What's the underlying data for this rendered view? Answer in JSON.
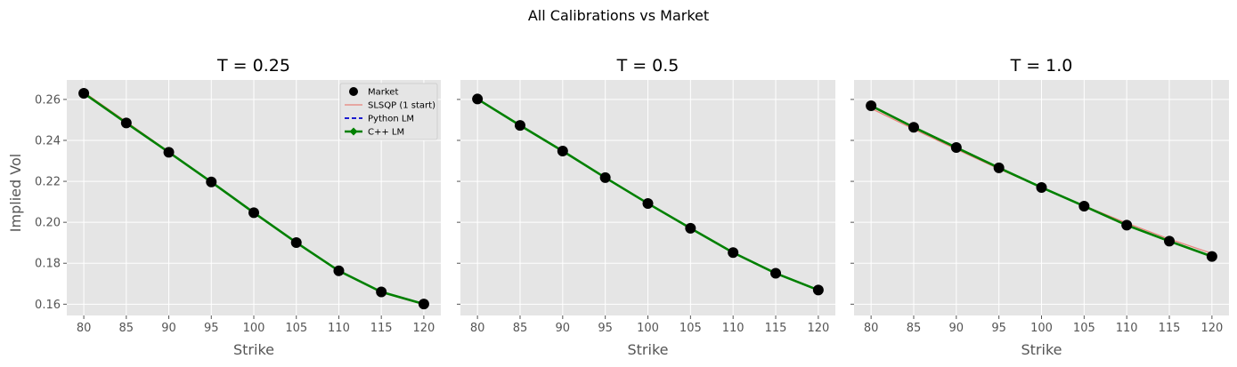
{
  "figure": {
    "suptitle": "All Calibrations vs Market",
    "shared_ylabel": "Implied Vol"
  },
  "chart_data": [
    {
      "type": "line",
      "title": "T = 0.25",
      "xlabel": "Strike",
      "ylabel": "Implied Vol",
      "x": [
        80,
        85,
        90,
        95,
        100,
        105,
        110,
        115,
        120
      ],
      "xticks": [
        80,
        85,
        90,
        95,
        100,
        105,
        110,
        115,
        120
      ],
      "yticks": [
        0.16,
        0.18,
        0.2,
        0.22,
        0.24,
        0.26
      ],
      "ytick_labels": [
        "0.16",
        "0.18",
        "0.20",
        "0.22",
        "0.24",
        "0.26"
      ],
      "xlim": [
        78,
        122
      ],
      "ylim": [
        0.1545,
        0.2695
      ],
      "show_legend": true,
      "legend_position": "upper right",
      "series": [
        {
          "name": "Market",
          "style": "markers",
          "color": "#000000",
          "values": [
            0.263,
            0.2485,
            0.2342,
            0.2197,
            0.2047,
            0.1901,
            0.1763,
            0.166,
            0.1601
          ]
        },
        {
          "name": "SLSQP (1 start)",
          "style": "thin",
          "color": "#e8827a",
          "values": [
            0.2636,
            0.2491,
            0.2345,
            0.2198,
            0.2049,
            0.1902,
            0.1765,
            0.1657,
            0.1598
          ]
        },
        {
          "name": "Python LM",
          "style": "dashed",
          "color": "#0000cc",
          "values": [
            0.263,
            0.2485,
            0.2342,
            0.2197,
            0.2047,
            0.1901,
            0.1763,
            0.166,
            0.1601
          ]
        },
        {
          "name": "C++ LM",
          "style": "thick-diamond",
          "color": "#008000",
          "values": [
            0.263,
            0.2485,
            0.2342,
            0.2197,
            0.2047,
            0.1901,
            0.1763,
            0.166,
            0.1601
          ]
        }
      ]
    },
    {
      "type": "line",
      "title": "T = 0.5",
      "xlabel": "Strike",
      "x": [
        80,
        85,
        90,
        95,
        100,
        105,
        110,
        115,
        120
      ],
      "xticks": [
        80,
        85,
        90,
        95,
        100,
        105,
        110,
        115,
        120
      ],
      "yticks": [
        0.16,
        0.18,
        0.2,
        0.22,
        0.24,
        0.26
      ],
      "ytick_labels": [
        "",
        "",
        "",
        "",
        "",
        ""
      ],
      "xlim": [
        78,
        122
      ],
      "ylim": [
        0.1545,
        0.2695
      ],
      "show_legend": false,
      "series": [
        {
          "name": "Market",
          "style": "markers",
          "color": "#000000",
          "values": [
            0.2602,
            0.2473,
            0.2348,
            0.2218,
            0.2092,
            0.1971,
            0.1852,
            0.1751,
            0.1669
          ]
        },
        {
          "name": "SLSQP (1 start)",
          "style": "thin",
          "color": "#e8827a",
          "values": [
            0.2604,
            0.2474,
            0.2347,
            0.2219,
            0.2093,
            0.1971,
            0.1852,
            0.1752,
            0.1669
          ]
        },
        {
          "name": "Python LM",
          "style": "dashed",
          "color": "#0000cc",
          "values": [
            0.2602,
            0.2473,
            0.2348,
            0.2218,
            0.2092,
            0.1971,
            0.1852,
            0.1751,
            0.1669
          ]
        },
        {
          "name": "C++ LM",
          "style": "thick-diamond",
          "color": "#008000",
          "values": [
            0.2602,
            0.2473,
            0.2348,
            0.2218,
            0.2092,
            0.1971,
            0.1852,
            0.1751,
            0.1669
          ]
        }
      ]
    },
    {
      "type": "line",
      "title": "T = 1.0",
      "xlabel": "Strike",
      "x": [
        80,
        85,
        90,
        95,
        100,
        105,
        110,
        115,
        120
      ],
      "xticks": [
        80,
        85,
        90,
        95,
        100,
        105,
        110,
        115,
        120
      ],
      "yticks": [
        0.16,
        0.18,
        0.2,
        0.22,
        0.24,
        0.26
      ],
      "ytick_labels": [
        "",
        "",
        "",
        "",
        "",
        ""
      ],
      "xlim": [
        78,
        122
      ],
      "ylim": [
        0.1545,
        0.2695
      ],
      "show_legend": false,
      "series": [
        {
          "name": "Market",
          "style": "markers",
          "color": "#000000",
          "values": [
            0.2569,
            0.2464,
            0.2365,
            0.2266,
            0.217,
            0.2079,
            0.1986,
            0.1908,
            0.1833
          ]
        },
        {
          "name": "SLSQP (1 start)",
          "style": "thin",
          "color": "#e8827a",
          "values": [
            0.2556,
            0.2455,
            0.2357,
            0.2261,
            0.2169,
            0.2081,
            0.1996,
            0.1918,
            0.1848
          ]
        },
        {
          "name": "Python LM",
          "style": "dashed",
          "color": "#0000cc",
          "values": [
            0.2569,
            0.2464,
            0.2365,
            0.2266,
            0.217,
            0.2079,
            0.1986,
            0.1908,
            0.1833
          ]
        },
        {
          "name": "C++ LM",
          "style": "thick-diamond",
          "color": "#008000",
          "values": [
            0.2569,
            0.2464,
            0.2365,
            0.2266,
            0.217,
            0.2079,
            0.1986,
            0.1908,
            0.1833
          ]
        }
      ]
    }
  ]
}
